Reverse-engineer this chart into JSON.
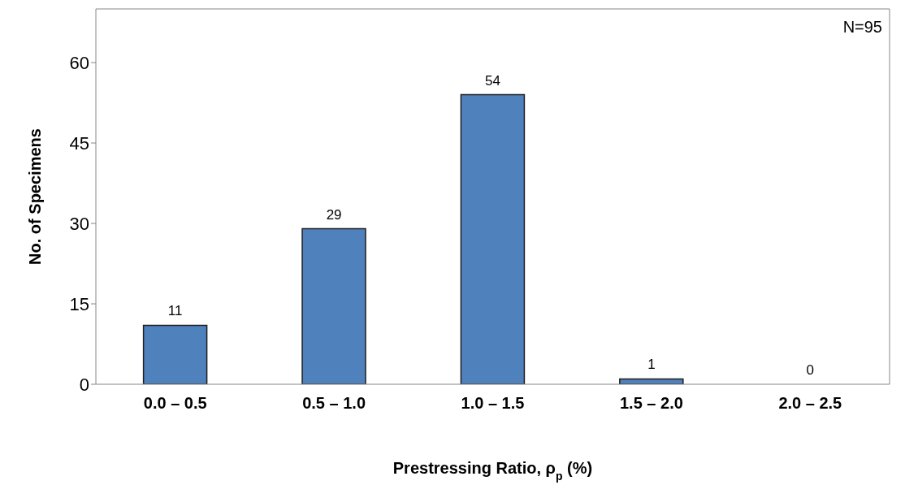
{
  "chart_data": {
    "type": "bar",
    "categories": [
      "0.0 – 0.5",
      "0.5 – 1.0",
      "1.0 – 1.5",
      "1.5 – 2.0",
      "2.0 – 2.5"
    ],
    "values": [
      11,
      29,
      54,
      1,
      0
    ],
    "color": "#4f81bd",
    "xlabel": "Prestressing Ratio, ρ$_{p}$ (%)",
    "ylabel": "No. of Specimens",
    "annotations": [
      "N=95"
    ],
    "ylim": [
      0,
      70
    ],
    "yticks": [
      0,
      15,
      30,
      45,
      60
    ],
    "data_labels": true,
    "grid": false,
    "legend": false
  }
}
